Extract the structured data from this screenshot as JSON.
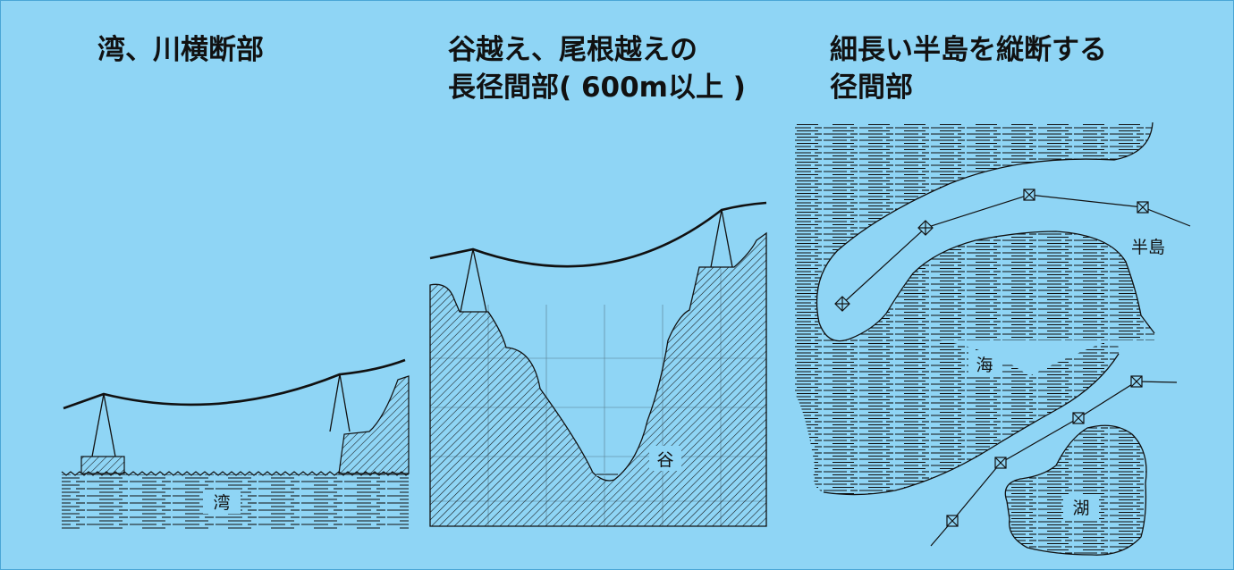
{
  "panels": [
    {
      "title_lines": [
        "湾、川横断部"
      ],
      "labels": {
        "water": "湾"
      }
    },
    {
      "title_lines": [
        "谷越え、尾根越えの",
        "長径間部( 600m以上 )"
      ],
      "labels": {
        "valley": "谷"
      }
    },
    {
      "title_lines": [
        "細長い半島を縦断する",
        "径間部"
      ],
      "labels": {
        "peninsula": "半島",
        "sea": "海",
        "lake": "湖"
      }
    }
  ],
  "colors": {
    "background": "#8fd5f5",
    "ink": "#111111",
    "border": "#4aa6d6"
  }
}
